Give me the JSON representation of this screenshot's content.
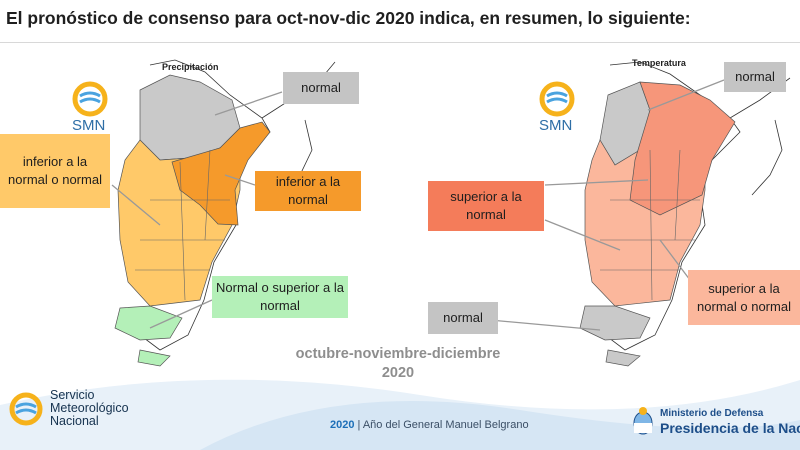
{
  "header": {
    "title": "El pronóstico de consenso para oct-nov-dic 2020 indica, en resumen, lo siguiente:"
  },
  "maps": {
    "precipitation": {
      "label": "Precipitación",
      "logo_text": "SMN",
      "callouts": [
        {
          "text": "normal",
          "color": "#c4c4c4"
        },
        {
          "text": "inferior a la normal o normal",
          "color": "#ffc969"
        },
        {
          "text": "inferior a la normal",
          "color": "#f59a2b"
        },
        {
          "text": "Normal o superior a la normal",
          "color": "#b4f0b8"
        }
      ]
    },
    "temperature": {
      "label": "Temperatura",
      "logo_text": "SMN",
      "callouts": [
        {
          "text": "normal",
          "color": "#c4c4c4"
        },
        {
          "text": "superior a la normal",
          "color": "#f47c5a"
        },
        {
          "text": "superior a la normal o normal",
          "color": "#fbb79c"
        },
        {
          "text": "normal",
          "color": "#c4c4c4"
        }
      ]
    }
  },
  "period": {
    "line1": "octubre-noviembre-diciembre",
    "line2": "2020"
  },
  "footer": {
    "org_line1": "Servicio",
    "org_line2": "Meteorológico",
    "org_line3": "Nacional",
    "year": "2020",
    "motto": " | Año del General Manuel Belgrano",
    "ministry_small": "Ministerio de Defensa",
    "ministry_big": "Presidencia de la Nación"
  }
}
